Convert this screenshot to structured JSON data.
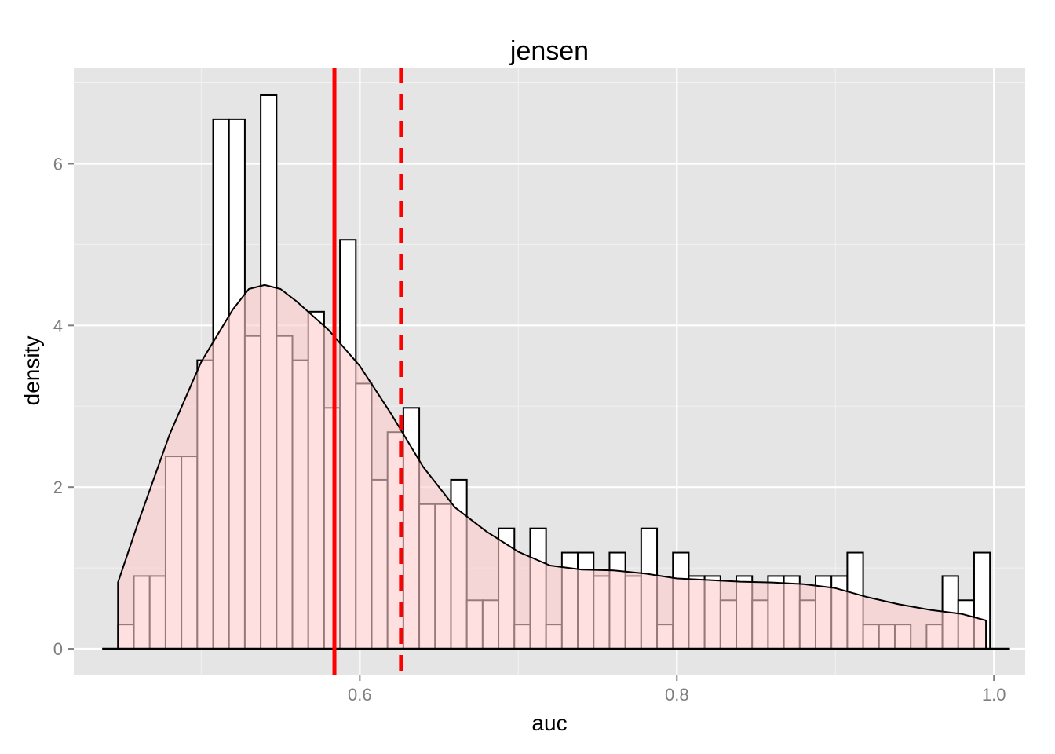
{
  "chart_data": {
    "type": "histogram",
    "title": "jensen",
    "xlabel": "auc",
    "ylabel": "density",
    "xlim": [
      0.4196,
      1.0197
    ],
    "ylim": [
      -0.33,
      7.19
    ],
    "x_ticks": [
      {
        "value": 0.6,
        "label": "0.6"
      },
      {
        "value": 0.8,
        "label": "0.8"
      },
      {
        "value": 1.0,
        "label": "1.0"
      }
    ],
    "y_ticks": [
      {
        "value": 0,
        "label": "0"
      },
      {
        "value": 2,
        "label": "2"
      },
      {
        "value": 4,
        "label": "4"
      },
      {
        "value": 6,
        "label": "6"
      }
    ],
    "grid": true,
    "bin_width": 0.01,
    "bin_start": 0.4475,
    "histogram_density": [
      0.3,
      0.9,
      0.9,
      2.38,
      2.38,
      3.57,
      6.55,
      6.55,
      3.87,
      6.85,
      3.87,
      3.57,
      4.17,
      2.98,
      5.06,
      3.28,
      2.09,
      2.68,
      2.98,
      1.79,
      1.79,
      2.09,
      0.6,
      0.6,
      1.49,
      0.3,
      1.49,
      0.3,
      1.19,
      1.19,
      0.9,
      1.19,
      0.9,
      1.49,
      0.3,
      1.19,
      0.9,
      0.9,
      0.6,
      0.9,
      0.6,
      0.9,
      0.9,
      0.6,
      0.9,
      0.9,
      1.19,
      0.3,
      0.3,
      0.3,
      0,
      0.3,
      0.9,
      0.6,
      1.19
    ],
    "baseline_range": [
      0.4375,
      1.0101
    ],
    "density_curve": {
      "x": [
        0.4475,
        0.46,
        0.48,
        0.5,
        0.52,
        0.53,
        0.54,
        0.55,
        0.56,
        0.58,
        0.6,
        0.62,
        0.64,
        0.66,
        0.68,
        0.7,
        0.72,
        0.74,
        0.76,
        0.78,
        0.8,
        0.82,
        0.84,
        0.86,
        0.88,
        0.9,
        0.92,
        0.94,
        0.96,
        0.98,
        0.995
      ],
      "y": [
        0.82,
        1.55,
        2.65,
        3.55,
        4.2,
        4.45,
        4.5,
        4.45,
        4.3,
        3.95,
        3.5,
        2.9,
        2.25,
        1.75,
        1.45,
        1.2,
        1.03,
        0.98,
        0.97,
        0.93,
        0.87,
        0.85,
        0.83,
        0.82,
        0.8,
        0.75,
        0.64,
        0.55,
        0.48,
        0.43,
        0.35
      ]
    },
    "vlines": [
      {
        "x": 0.584,
        "style": "solid",
        "color": "#ff0000"
      },
      {
        "x": 0.626,
        "style": "dashed",
        "color": "#ff0000"
      }
    ],
    "colors": {
      "panel": "#e5e5e5",
      "grid_major": "#ffffff",
      "grid_minor": "#f2f2f2",
      "bar_fill": "#ffffff",
      "bar_stroke": "#000000",
      "density_fill": "#ffcccc",
      "line_color": "#ff0000"
    }
  }
}
